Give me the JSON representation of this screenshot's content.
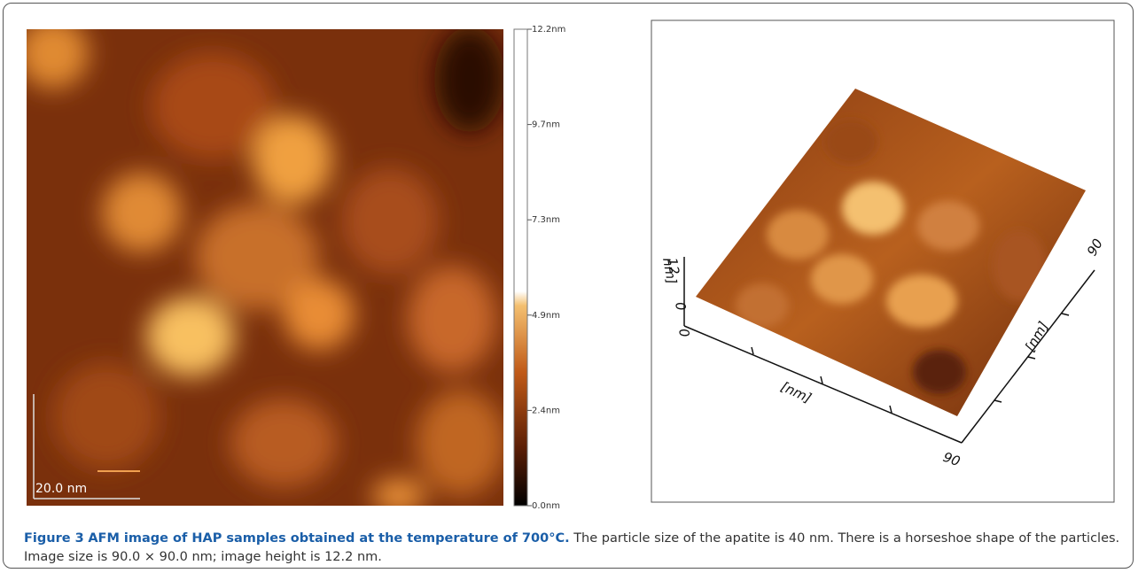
{
  "figure": {
    "left": {
      "colorbar_ticks": [
        "12.2nm",
        "9.7nm",
        "7.3nm",
        "4.9nm",
        "2.4nm",
        "0.0nm"
      ],
      "scale_bar": "20.0 nm"
    },
    "right": {
      "z_label": "nm]",
      "z_ticks": [
        "12",
        "0"
      ],
      "origin": "0",
      "x_label": "[nm]",
      "x_end": "90",
      "y_label": "[nm]",
      "y_end": "90"
    },
    "caption": {
      "label": "Figure 3",
      "title": "AFM image of HAP samples obtained at the temperature of 700°C.",
      "text": "The particle size of the apatite is 40 nm. There is a horseshoe shape of the particles. Image size is 90.0 × 90.0 nm; image height is 12.2 nm."
    }
  }
}
